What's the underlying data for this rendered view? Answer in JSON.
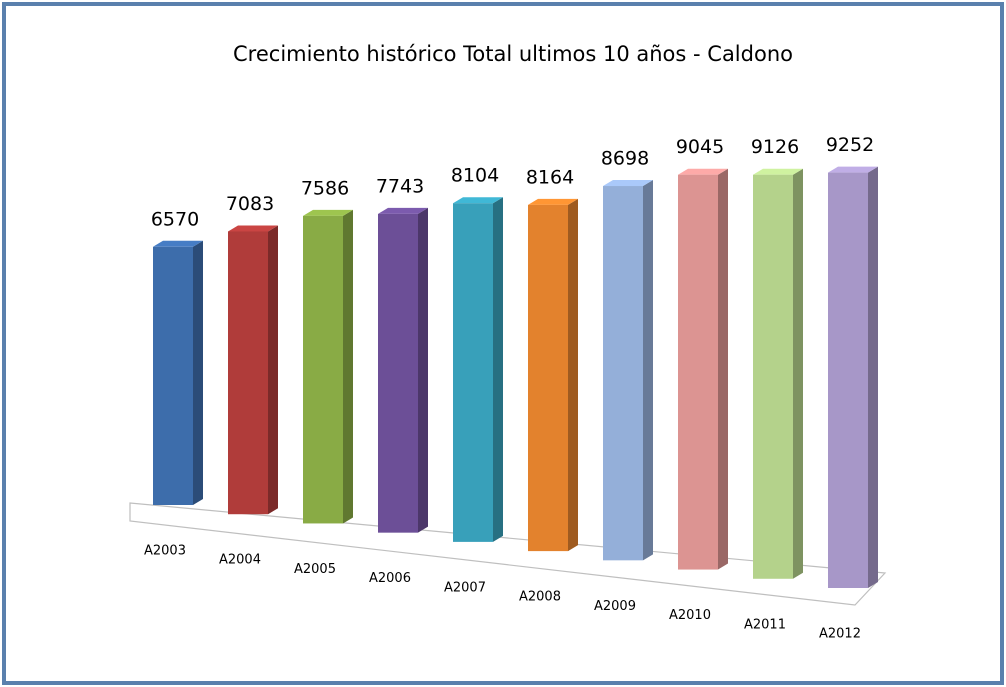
{
  "chart_data": {
    "type": "bar3d",
    "title": "Crecimiento histórico Total ultimos 10 años - Caldono",
    "categories": [
      "A2003",
      "A2004",
      "A2005",
      "A2006",
      "A2007",
      "A2008",
      "A2009",
      "A2010",
      "A2011",
      "A2012"
    ],
    "values": [
      6570,
      7083,
      7586,
      7743,
      8104,
      8164,
      8698,
      9045,
      9126,
      9252
    ],
    "colors": [
      "#3d6dab",
      "#b03c3a",
      "#89ab45",
      "#6c4f97",
      "#38a0ba",
      "#e3822d",
      "#94afd9",
      "#dc9492",
      "#b4d28b",
      "#a797c8"
    ]
  }
}
